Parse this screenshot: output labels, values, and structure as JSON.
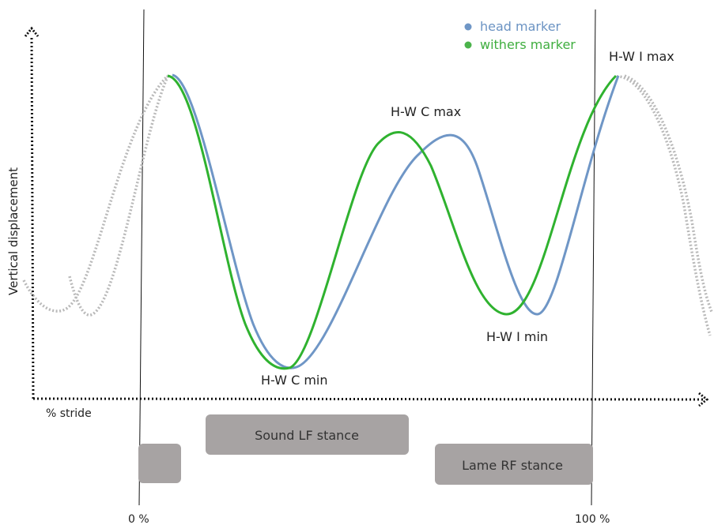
{
  "legend": [
    {
      "label": "head marker",
      "color": "#6f96c6"
    },
    {
      "label": "withers marker",
      "color": "#4bb34b"
    }
  ],
  "axes": {
    "y_label": "Vertical displacement",
    "x_label": "% stride",
    "tick_start": "0 %",
    "tick_end": "100 %"
  },
  "annotations": {
    "hw_i_max": "H-W I max",
    "hw_c_max": "H-W C max",
    "hw_c_min": "H-W C min",
    "hw_i_min": "H-W I min"
  },
  "stance_bars": [
    {
      "label": ""
    },
    {
      "label": "Sound LF stance"
    },
    {
      "label": "Lame RF stance"
    }
  ],
  "colors": {
    "head": "#6f96c6",
    "withers": "#2fb22f",
    "dotted": "#b9b9b9",
    "bar": "#a7a3a3",
    "axis": "#111111"
  }
}
